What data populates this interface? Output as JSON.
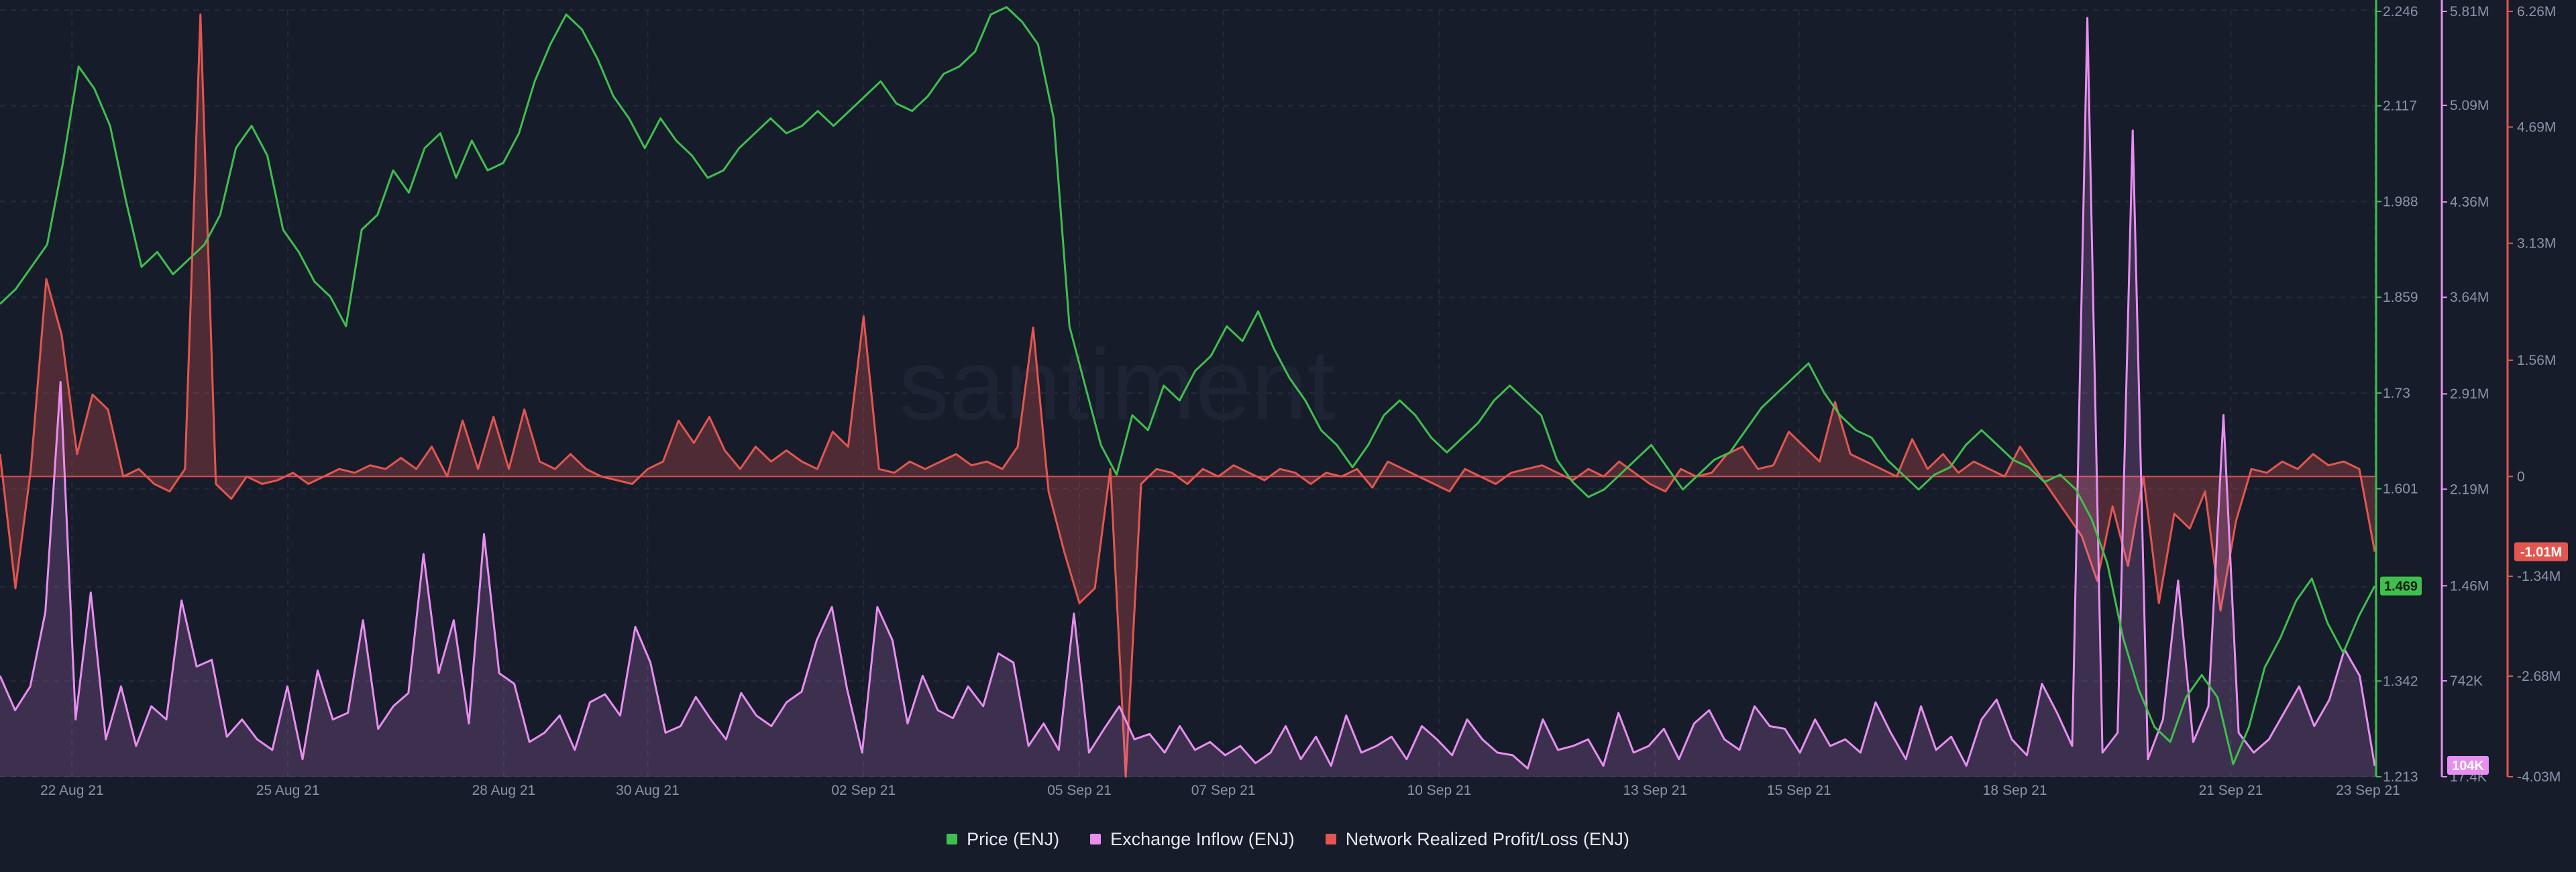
{
  "chart_data": {
    "type": "line",
    "watermark": "santiment",
    "x_axis": {
      "start": "2021-08-21",
      "end": "2021-09-23",
      "tick_labels": [
        "22 Aug 21",
        "25 Aug 21",
        "28 Aug 21",
        "30 Aug 21",
        "02 Sep 21",
        "05 Sep 21",
        "07 Sep 21",
        "10 Sep 21",
        "13 Sep 21",
        "15 Sep 21",
        "18 Sep 21",
        "21 Sep 21",
        "23 Sep 21"
      ]
    },
    "axes": {
      "price": {
        "ticks": [
          "2.246",
          "2.117",
          "1.988",
          "1.859",
          "1.73",
          "1.601",
          "1.469",
          "1.342",
          "1.213"
        ],
        "range": [
          1.213,
          2.246
        ],
        "color": "#3fbf4d"
      },
      "inflow": {
        "ticks": [
          "5.81M",
          "5.09M",
          "4.36M",
          "3.64M",
          "2.91M",
          "2.19M",
          "1.46M",
          "742K",
          "17.4K"
        ],
        "range": [
          17400,
          5810000
        ],
        "color": "#e88ef0"
      },
      "pnl": {
        "ticks": [
          "6.26M",
          "4.69M",
          "3.13M",
          "1.56M",
          "0",
          "-1.34M",
          "-2.68M",
          "-4.03M"
        ],
        "range": [
          -4030000,
          6260000
        ],
        "color": "#e3564f"
      }
    },
    "current_values": {
      "price": "1.469",
      "inflow": "104K",
      "pnl": "-1.01M"
    },
    "series": [
      {
        "name": "Price (ENJ)",
        "axis": "price",
        "color": "#3fbf4d",
        "style": "line",
        "values": [
          1.85,
          1.87,
          1.9,
          1.93,
          2.04,
          2.17,
          2.14,
          2.09,
          1.99,
          1.9,
          1.92,
          1.89,
          1.91,
          1.93,
          1.97,
          2.06,
          2.09,
          2.05,
          1.95,
          1.92,
          1.88,
          1.86,
          1.82,
          1.95,
          1.97,
          2.03,
          2.0,
          2.06,
          2.08,
          2.02,
          2.07,
          2.03,
          2.04,
          2.08,
          2.15,
          2.2,
          2.24,
          2.22,
          2.18,
          2.13,
          2.1,
          2.06,
          2.1,
          2.07,
          2.05,
          2.02,
          2.03,
          2.06,
          2.08,
          2.1,
          2.08,
          2.09,
          2.11,
          2.09,
          2.11,
          2.13,
          2.15,
          2.12,
          2.11,
          2.13,
          2.16,
          2.17,
          2.19,
          2.24,
          2.25,
          2.23,
          2.2,
          2.1,
          1.82,
          1.74,
          1.66,
          1.62,
          1.7,
          1.68,
          1.74,
          1.72,
          1.76,
          1.78,
          1.82,
          1.8,
          1.84,
          1.79,
          1.75,
          1.72,
          1.68,
          1.66,
          1.63,
          1.66,
          1.7,
          1.72,
          1.7,
          1.67,
          1.65,
          1.67,
          1.69,
          1.72,
          1.74,
          1.72,
          1.7,
          1.64,
          1.61,
          1.59,
          1.6,
          1.62,
          1.64,
          1.66,
          1.63,
          1.6,
          1.62,
          1.64,
          1.65,
          1.68,
          1.71,
          1.73,
          1.75,
          1.77,
          1.73,
          1.7,
          1.68,
          1.67,
          1.64,
          1.62,
          1.6,
          1.62,
          1.63,
          1.66,
          1.68,
          1.66,
          1.64,
          1.63,
          1.61,
          1.62,
          1.6,
          1.56,
          1.5,
          1.4,
          1.33,
          1.28,
          1.26,
          1.32,
          1.35,
          1.32,
          1.23,
          1.28,
          1.36,
          1.4,
          1.45,
          1.48,
          1.42,
          1.38,
          1.43,
          1.47
        ]
      },
      {
        "name": "Exchange Inflow (ENJ)",
        "axis": "inflow",
        "color": "#e88ef0",
        "style": "area",
        "values": [
          0.78,
          0.52,
          0.7,
          1.26,
          3.0,
          0.45,
          1.41,
          0.3,
          0.7,
          0.25,
          0.55,
          0.45,
          1.35,
          0.85,
          0.9,
          0.32,
          0.45,
          0.3,
          0.22,
          0.7,
          0.15,
          0.82,
          0.45,
          0.5,
          1.2,
          0.38,
          0.55,
          0.65,
          1.7,
          0.8,
          1.2,
          0.42,
          1.85,
          0.8,
          0.72,
          0.28,
          0.35,
          0.48,
          0.22,
          0.58,
          0.64,
          0.48,
          1.15,
          0.88,
          0.35,
          0.4,
          0.62,
          0.45,
          0.3,
          0.65,
          0.48,
          0.4,
          0.58,
          0.66,
          1.05,
          1.3,
          0.68,
          0.2,
          1.3,
          1.05,
          0.42,
          0.78,
          0.52,
          0.46,
          0.7,
          0.55,
          0.95,
          0.88,
          0.25,
          0.42,
          0.22,
          1.25,
          0.2,
          0.38,
          0.55,
          0.3,
          0.34,
          0.2,
          0.4,
          0.22,
          0.28,
          0.18,
          0.25,
          0.12,
          0.2,
          0.4,
          0.15,
          0.32,
          0.1,
          0.48,
          0.2,
          0.25,
          0.32,
          0.15,
          0.4,
          0.3,
          0.18,
          0.45,
          0.3,
          0.2,
          0.18,
          0.08,
          0.45,
          0.22,
          0.25,
          0.3,
          0.1,
          0.5,
          0.2,
          0.25,
          0.38,
          0.15,
          0.42,
          0.52,
          0.3,
          0.22,
          0.55,
          0.4,
          0.38,
          0.2,
          0.45,
          0.25,
          0.3,
          0.2,
          0.58,
          0.35,
          0.15,
          0.55,
          0.22,
          0.32,
          0.1,
          0.45,
          0.6,
          0.3,
          0.18,
          0.72,
          0.5,
          0.25,
          5.75,
          0.2,
          0.35,
          4.9,
          0.15,
          0.45,
          1.5,
          0.28,
          0.55,
          2.75,
          0.35,
          0.2,
          0.3,
          0.5,
          0.7,
          0.4,
          0.6,
          0.98,
          0.78,
          0.1
        ]
      },
      {
        "name": "Network Realized Profit/Loss (ENJ)",
        "axis": "pnl",
        "color": "#e3564f",
        "style": "area",
        "values": [
          0.3,
          -1.5,
          0.1,
          2.65,
          1.9,
          0.3,
          1.1,
          0.9,
          0.0,
          0.1,
          -0.1,
          -0.2,
          0.1,
          6.2,
          -0.1,
          -0.3,
          0.0,
          -0.1,
          -0.05,
          0.05,
          -0.1,
          0.0,
          0.1,
          0.05,
          0.15,
          0.1,
          0.25,
          0.1,
          0.4,
          0.0,
          0.75,
          0.1,
          0.8,
          0.1,
          0.9,
          0.2,
          0.1,
          0.3,
          0.1,
          0.0,
          -0.05,
          -0.1,
          0.1,
          0.2,
          0.75,
          0.45,
          0.8,
          0.35,
          0.1,
          0.4,
          0.2,
          0.35,
          0.2,
          0.1,
          0.6,
          0.4,
          2.15,
          0.1,
          0.05,
          0.2,
          0.1,
          0.2,
          0.3,
          0.15,
          0.2,
          0.1,
          0.4,
          2.0,
          -0.2,
          -1.0,
          -1.7,
          -1.5,
          0.1,
          -4.03,
          -0.1,
          0.1,
          0.05,
          -0.1,
          0.1,
          0.0,
          0.15,
          0.05,
          -0.05,
          0.1,
          0.05,
          -0.1,
          0.05,
          0.0,
          0.1,
          -0.15,
          0.2,
          0.1,
          0.0,
          -0.1,
          -0.2,
          0.1,
          0.0,
          -0.1,
          0.05,
          0.1,
          0.15,
          0.05,
          -0.05,
          0.1,
          0.0,
          0.2,
          0.05,
          -0.1,
          -0.2,
          0.1,
          0.0,
          0.05,
          0.3,
          0.4,
          0.1,
          0.15,
          0.6,
          0.4,
          0.2,
          1.0,
          0.3,
          0.2,
          0.1,
          0.0,
          0.5,
          0.1,
          0.3,
          0.05,
          0.2,
          0.1,
          0.0,
          0.4,
          0.1,
          -0.2,
          -0.5,
          -0.8,
          -1.4,
          -0.4,
          -1.2,
          0.0,
          -1.7,
          -0.5,
          -0.7,
          -0.2,
          -1.8,
          -0.6,
          0.1,
          0.05,
          0.2,
          0.1,
          0.3,
          0.15,
          0.2,
          0.1,
          -1.01
        ]
      }
    ]
  }
}
